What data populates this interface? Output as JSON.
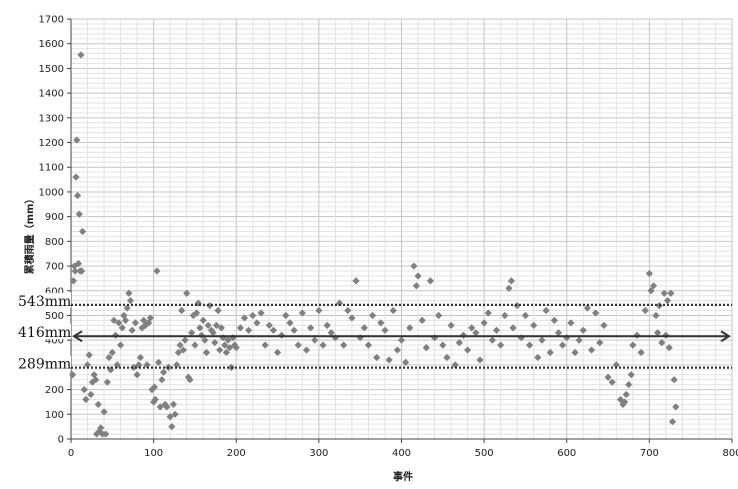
{
  "chart_data": {
    "type": "scatter",
    "xlabel": "事件",
    "ylabel": "累積雨量（mm）",
    "xlim": [
      0,
      800
    ],
    "ylim": [
      0,
      1700
    ],
    "x_ticks": [
      "0",
      "100",
      "200",
      "300",
      "400",
      "500",
      "600",
      "700",
      "800"
    ],
    "y_ticks": [
      "0",
      "100",
      "200",
      "300",
      "400",
      "500",
      "600",
      "700",
      "800",
      "900",
      "1000",
      "1100",
      "1200",
      "1300",
      "1400",
      "1500",
      "1600",
      "1700"
    ],
    "grid": true,
    "marker_color": "#808080",
    "reference_lines": [
      {
        "label": "543mm",
        "value": 543,
        "style": "dotted"
      },
      {
        "label": "416mm",
        "value": 416,
        "style": "double-arrow"
      },
      {
        "label": "289mm",
        "value": 289,
        "style": "dotted"
      }
    ],
    "points": [
      [
        2,
        260
      ],
      [
        3,
        640
      ],
      [
        4,
        700
      ],
      [
        5,
        680
      ],
      [
        6,
        1060
      ],
      [
        7,
        1210
      ],
      [
        8,
        985
      ],
      [
        9,
        710
      ],
      [
        10,
        910
      ],
      [
        11,
        680
      ],
      [
        12,
        1555
      ],
      [
        13,
        680
      ],
      [
        14,
        840
      ],
      [
        16,
        200
      ],
      [
        18,
        160
      ],
      [
        20,
        300
      ],
      [
        22,
        340
      ],
      [
        24,
        180
      ],
      [
        26,
        230
      ],
      [
        28,
        260
      ],
      [
        30,
        240
      ],
      [
        31,
        20
      ],
      [
        33,
        140
      ],
      [
        34,
        30
      ],
      [
        36,
        45
      ],
      [
        38,
        20
      ],
      [
        40,
        110
      ],
      [
        42,
        20
      ],
      [
        44,
        230
      ],
      [
        46,
        330
      ],
      [
        48,
        280
      ],
      [
        50,
        350
      ],
      [
        52,
        480
      ],
      [
        54,
        420
      ],
      [
        56,
        300
      ],
      [
        58,
        470
      ],
      [
        60,
        380
      ],
      [
        62,
        450
      ],
      [
        64,
        500
      ],
      [
        66,
        480
      ],
      [
        68,
        530
      ],
      [
        70,
        590
      ],
      [
        72,
        560
      ],
      [
        74,
        440
      ],
      [
        76,
        290
      ],
      [
        78,
        470
      ],
      [
        80,
        260
      ],
      [
        82,
        300
      ],
      [
        84,
        330
      ],
      [
        86,
        450
      ],
      [
        88,
        480
      ],
      [
        90,
        460
      ],
      [
        92,
        300
      ],
      [
        94,
        470
      ],
      [
        96,
        490
      ],
      [
        98,
        200
      ],
      [
        100,
        150
      ],
      [
        101,
        210
      ],
      [
        102,
        160
      ],
      [
        104,
        680
      ],
      [
        106,
        310
      ],
      [
        108,
        130
      ],
      [
        110,
        240
      ],
      [
        112,
        270
      ],
      [
        114,
        140
      ],
      [
        116,
        130
      ],
      [
        118,
        290
      ],
      [
        120,
        90
      ],
      [
        122,
        50
      ],
      [
        124,
        140
      ],
      [
        126,
        100
      ],
      [
        128,
        300
      ],
      [
        130,
        350
      ],
      [
        132,
        380
      ],
      [
        134,
        520
      ],
      [
        136,
        360
      ],
      [
        138,
        400
      ],
      [
        140,
        590
      ],
      [
        142,
        250
      ],
      [
        144,
        240
      ],
      [
        146,
        430
      ],
      [
        148,
        500
      ],
      [
        150,
        380
      ],
      [
        152,
        510
      ],
      [
        154,
        550
      ],
      [
        156,
        450
      ],
      [
        158,
        420
      ],
      [
        160,
        480
      ],
      [
        162,
        400
      ],
      [
        164,
        350
      ],
      [
        166,
        460
      ],
      [
        168,
        540
      ],
      [
        170,
        440
      ],
      [
        172,
        430
      ],
      [
        174,
        390
      ],
      [
        176,
        460
      ],
      [
        178,
        520
      ],
      [
        180,
        360
      ],
      [
        182,
        450
      ],
      [
        184,
        410
      ],
      [
        186,
        380
      ],
      [
        188,
        350
      ],
      [
        190,
        400
      ],
      [
        192,
        370
      ],
      [
        194,
        290
      ],
      [
        196,
        410
      ],
      [
        198,
        380
      ],
      [
        200,
        370
      ],
      [
        205,
        450
      ],
      [
        210,
        490
      ],
      [
        215,
        440
      ],
      [
        220,
        500
      ],
      [
        225,
        470
      ],
      [
        230,
        510
      ],
      [
        235,
        380
      ],
      [
        240,
        460
      ],
      [
        245,
        440
      ],
      [
        250,
        350
      ],
      [
        255,
        420
      ],
      [
        260,
        500
      ],
      [
        265,
        470
      ],
      [
        270,
        440
      ],
      [
        275,
        380
      ],
      [
        280,
        510
      ],
      [
        285,
        360
      ],
      [
        290,
        450
      ],
      [
        295,
        400
      ],
      [
        300,
        520
      ],
      [
        305,
        380
      ],
      [
        310,
        460
      ],
      [
        315,
        430
      ],
      [
        320,
        410
      ],
      [
        325,
        550
      ],
      [
        330,
        380
      ],
      [
        335,
        520
      ],
      [
        340,
        490
      ],
      [
        345,
        640
      ],
      [
        350,
        410
      ],
      [
        355,
        450
      ],
      [
        360,
        380
      ],
      [
        365,
        500
      ],
      [
        370,
        330
      ],
      [
        375,
        470
      ],
      [
        380,
        440
      ],
      [
        385,
        320
      ],
      [
        390,
        520
      ],
      [
        395,
        360
      ],
      [
        400,
        400
      ],
      [
        405,
        310
      ],
      [
        410,
        450
      ],
      [
        415,
        700
      ],
      [
        418,
        620
      ],
      [
        420,
        660
      ],
      [
        425,
        480
      ],
      [
        430,
        370
      ],
      [
        435,
        640
      ],
      [
        440,
        410
      ],
      [
        445,
        500
      ],
      [
        450,
        380
      ],
      [
        455,
        330
      ],
      [
        460,
        460
      ],
      [
        465,
        300
      ],
      [
        470,
        390
      ],
      [
        475,
        420
      ],
      [
        480,
        360
      ],
      [
        485,
        450
      ],
      [
        490,
        430
      ],
      [
        495,
        320
      ],
      [
        500,
        470
      ],
      [
        505,
        510
      ],
      [
        510,
        400
      ],
      [
        515,
        440
      ],
      [
        520,
        380
      ],
      [
        525,
        500
      ],
      [
        530,
        610
      ],
      [
        533,
        640
      ],
      [
        535,
        450
      ],
      [
        540,
        540
      ],
      [
        545,
        410
      ],
      [
        550,
        500
      ],
      [
        555,
        380
      ],
      [
        560,
        460
      ],
      [
        565,
        330
      ],
      [
        570,
        400
      ],
      [
        575,
        520
      ],
      [
        580,
        350
      ],
      [
        585,
        480
      ],
      [
        590,
        430
      ],
      [
        595,
        380
      ],
      [
        600,
        410
      ],
      [
        605,
        470
      ],
      [
        610,
        350
      ],
      [
        615,
        400
      ],
      [
        620,
        440
      ],
      [
        625,
        530
      ],
      [
        630,
        360
      ],
      [
        635,
        510
      ],
      [
        640,
        390
      ],
      [
        645,
        460
      ],
      [
        650,
        250
      ],
      [
        655,
        230
      ],
      [
        660,
        300
      ],
      [
        665,
        160
      ],
      [
        668,
        140
      ],
      [
        670,
        150
      ],
      [
        672,
        180
      ],
      [
        675,
        220
      ],
      [
        678,
        260
      ],
      [
        680,
        380
      ],
      [
        685,
        420
      ],
      [
        690,
        350
      ],
      [
        695,
        520
      ],
      [
        700,
        670
      ],
      [
        702,
        600
      ],
      [
        705,
        620
      ],
      [
        708,
        500
      ],
      [
        710,
        430
      ],
      [
        712,
        540
      ],
      [
        715,
        390
      ],
      [
        718,
        590
      ],
      [
        720,
        420
      ],
      [
        722,
        560
      ],
      [
        724,
        370
      ],
      [
        726,
        590
      ],
      [
        728,
        70
      ],
      [
        730,
        240
      ],
      [
        732,
        130
      ]
    ]
  }
}
